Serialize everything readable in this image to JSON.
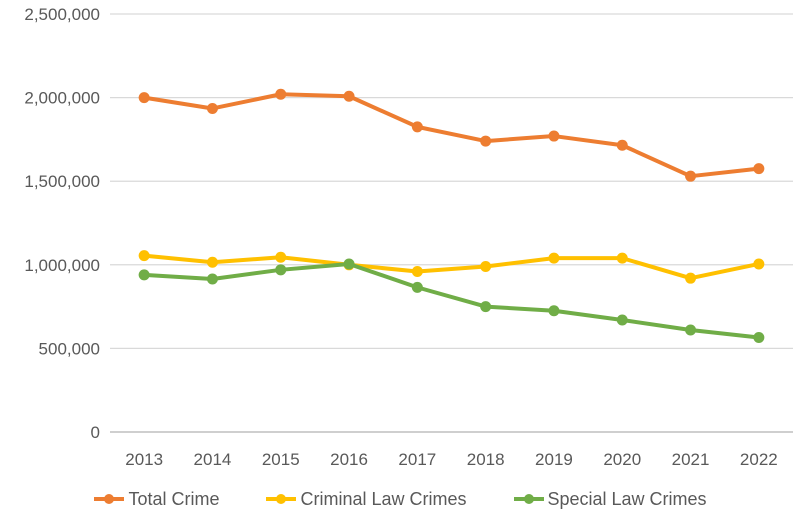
{
  "chart_data": {
    "type": "line",
    "title": "",
    "xlabel": "",
    "ylabel": "",
    "x": [
      "2013",
      "2014",
      "2015",
      "2016",
      "2017",
      "2018",
      "2019",
      "2020",
      "2021",
      "2022"
    ],
    "series": [
      {
        "name": "Total Crime",
        "color": "#ED7D31",
        "values": [
          2000000,
          1935000,
          2020000,
          2008000,
          1825000,
          1740000,
          1770000,
          1715000,
          1530000,
          1575000
        ]
      },
      {
        "name": "Criminal Law Crimes",
        "color": "#FFC000",
        "values": [
          1055000,
          1015000,
          1045000,
          1000000,
          960000,
          990000,
          1040000,
          1040000,
          920000,
          1005000
        ]
      },
      {
        "name": "Special Law Crimes",
        "color": "#70AD47",
        "values": [
          940000,
          915000,
          970000,
          1005000,
          865000,
          750000,
          725000,
          670000,
          610000,
          565000
        ]
      }
    ],
    "ylim": [
      0,
      2500000
    ],
    "ytick_interval": 500000,
    "ytick_labels": [
      "0",
      "500,000",
      "1,000,000",
      "1,500,000",
      "2,000,000",
      "2,500,000"
    ],
    "grid": true,
    "legend_position": "bottom",
    "colors": {
      "axis_text": "#595959",
      "gridline": "#D9D9D9",
      "baseline": "#BFBFBF",
      "background": "#FFFFFF"
    }
  }
}
